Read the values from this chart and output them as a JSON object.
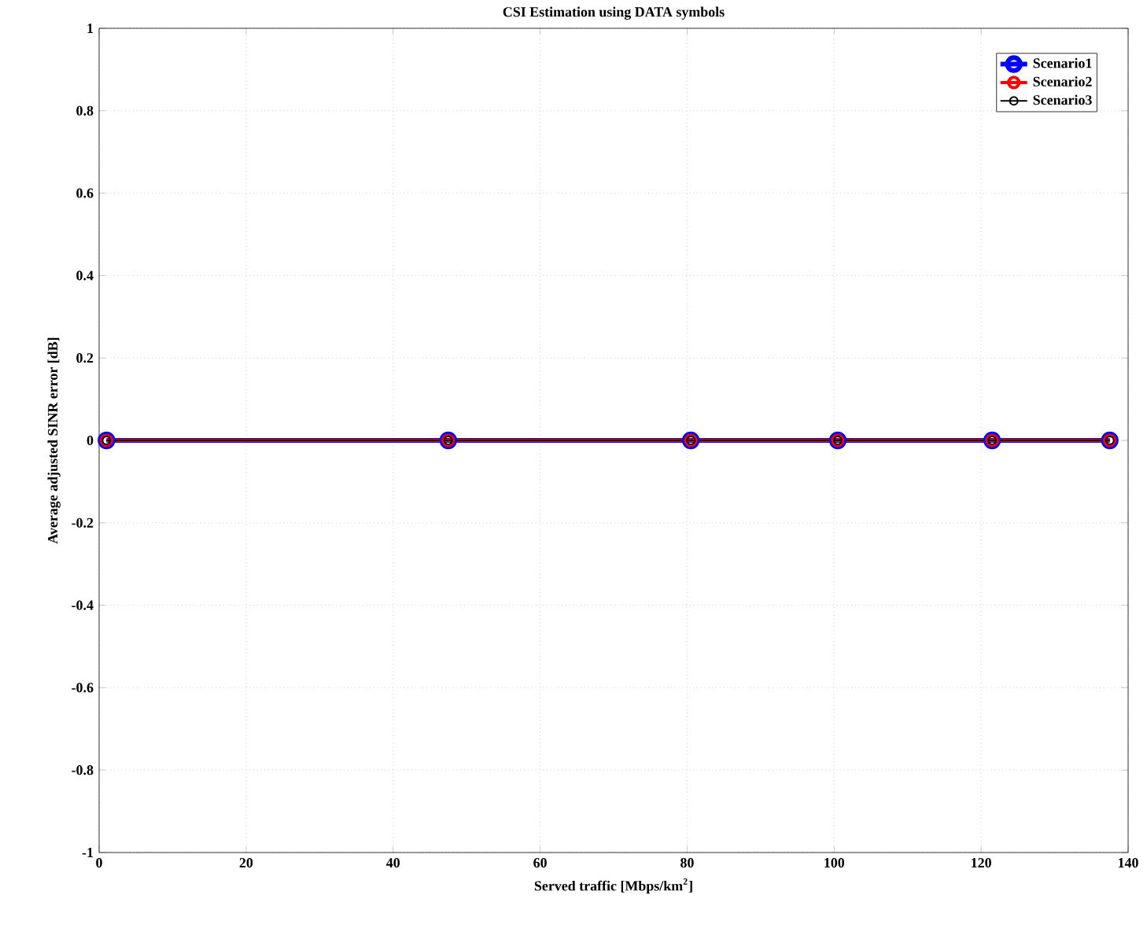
{
  "chart_data": {
    "type": "line",
    "title": "CSI Estimation using DATA symbols",
    "xlabel": "Served traffic [Mbps/km$^{2}$]",
    "ylabel": "Average adjusted SINR error [dB]",
    "x": [
      1,
      47.5,
      80.5,
      100.5,
      121.5,
      137.5
    ],
    "series": [
      {
        "name": "Scenario1",
        "color": "#0000ff",
        "values": [
          0,
          0,
          0,
          0,
          0,
          0
        ]
      },
      {
        "name": "Scenario2",
        "color": "#ff0000",
        "values": [
          0,
          0,
          0,
          0,
          0,
          0
        ]
      },
      {
        "name": "Scenario3",
        "color": "#000000",
        "values": [
          0,
          0,
          0,
          0,
          0,
          0
        ]
      }
    ],
    "xlim": [
      0,
      140
    ],
    "ylim": [
      -1,
      1
    ],
    "xticks": [
      0,
      20,
      40,
      60,
      80,
      100,
      120,
      140
    ],
    "yticks": [
      -1,
      -0.8,
      -0.6,
      -0.4,
      -0.2,
      0,
      0.2,
      0.4,
      0.6,
      0.8,
      1
    ],
    "grid": true,
    "legend": "top right",
    "marker": "circle",
    "line_style": "solid"
  }
}
